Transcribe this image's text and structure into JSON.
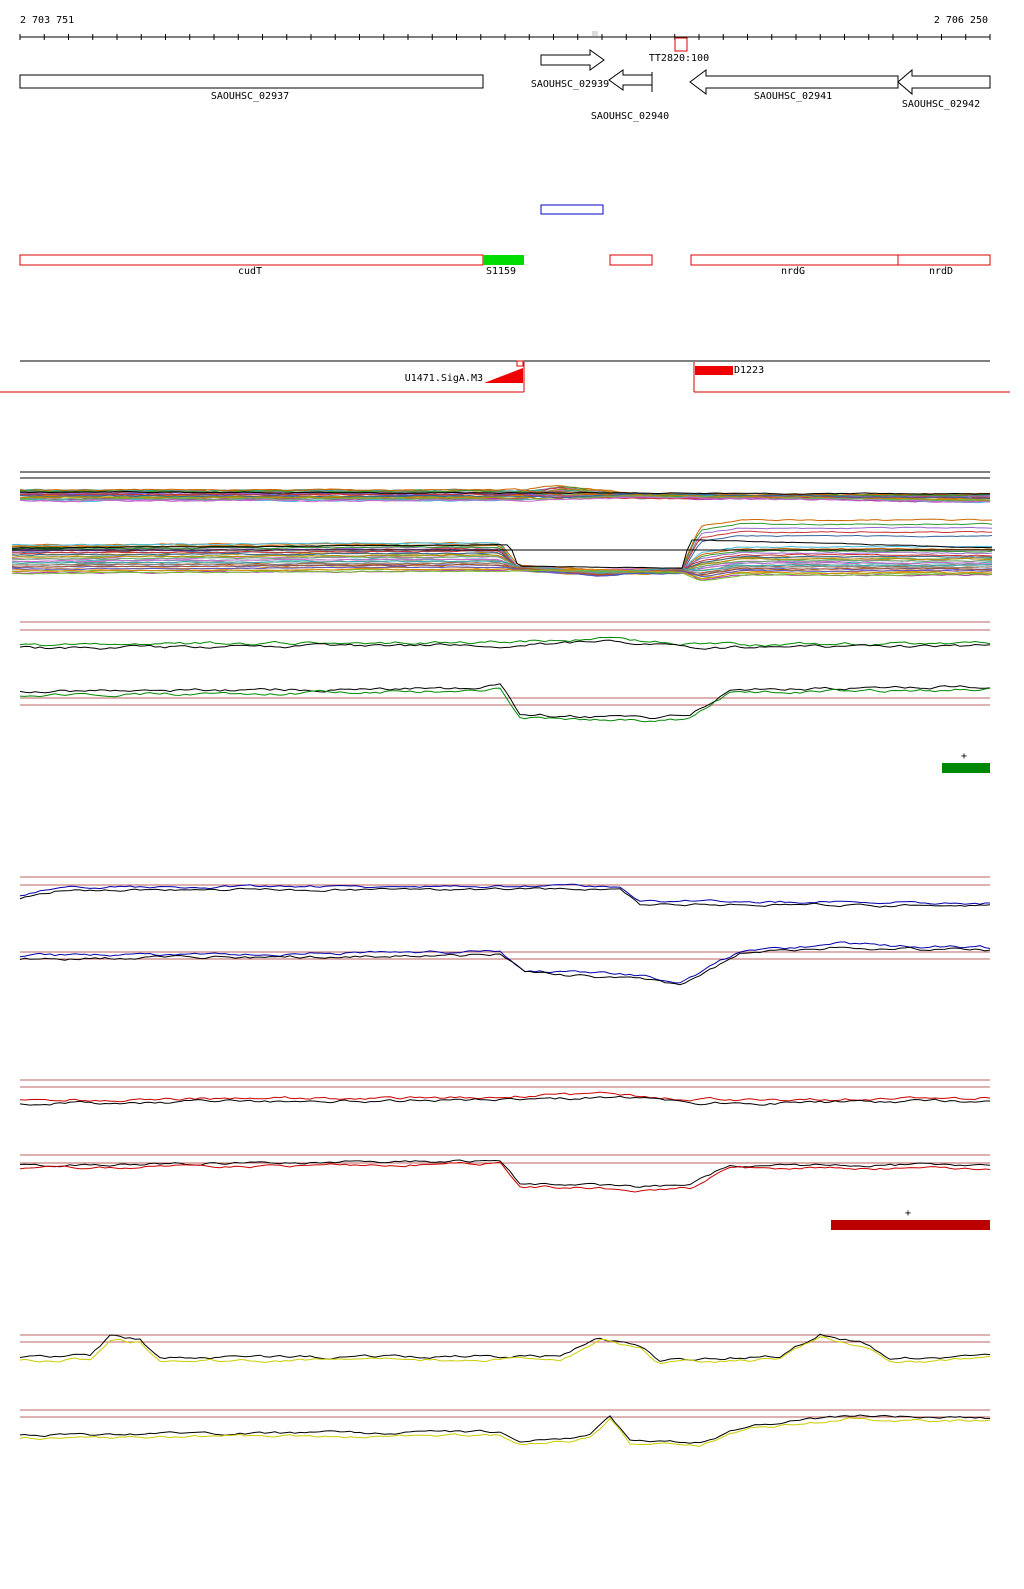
{
  "ruler": {
    "start": "2 703 751",
    "end": "2 706 250"
  },
  "genes": [
    {
      "label": "SAOUHSC_02937"
    },
    {
      "label": "SAOUHSC_02939"
    },
    {
      "label": "SAOUHSC_02940"
    },
    {
      "label": "SAOUHSC_02941"
    },
    {
      "label": "SAOUHSC_02942"
    }
  ],
  "terminator": {
    "label": "TT2820:100"
  },
  "features": [
    {
      "label": "cudT"
    },
    {
      "label": "S1159"
    },
    {
      "label": "nrdG"
    },
    {
      "label": "nrdD"
    }
  ],
  "promoter": {
    "label": "U1471.SigA.M3"
  },
  "transcript": {
    "label": "D1223"
  },
  "conditions": [
    {
      "label": "+"
    },
    {
      "label": "+"
    }
  ]
}
